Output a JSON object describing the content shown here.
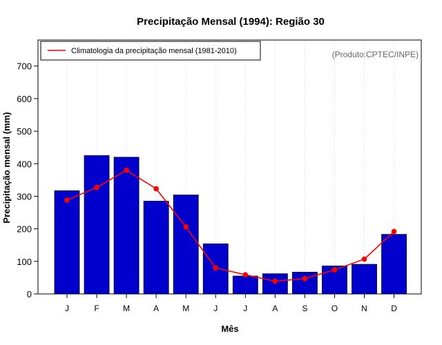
{
  "chart_data": {
    "type": "bar",
    "title": "Precipitação Mensal (1994): Região 30",
    "xlabel": "Mês",
    "ylabel": "Precipitação mensal (mm)",
    "categories": [
      "J",
      "F",
      "M",
      "A",
      "M",
      "J",
      "J",
      "A",
      "S",
      "O",
      "N",
      "D"
    ],
    "ylim": [
      0,
      780
    ],
    "yticks": [
      0,
      100,
      200,
      300,
      400,
      500,
      600,
      700
    ],
    "series": [
      {
        "name": "Precipitação mensal (1994)",
        "type": "bar",
        "color": "#0000cc",
        "values": [
          317,
          425,
          420,
          285,
          304,
          154,
          55,
          62,
          67,
          86,
          91,
          183
        ]
      },
      {
        "name": "Climatologia da precipitação mensal (1981-2010)",
        "type": "line",
        "color": "#ff0000",
        "values": [
          288,
          327,
          380,
          323,
          206,
          80,
          59,
          39,
          47,
          74,
          107,
          192
        ]
      }
    ],
    "legend": {
      "position": "top-left",
      "entries": [
        "Climatologia da precipitação mensal (1981-2010)"
      ]
    },
    "annotation": "(Produto:CPTEC/INPE)",
    "grid": "vertical-dotted"
  }
}
